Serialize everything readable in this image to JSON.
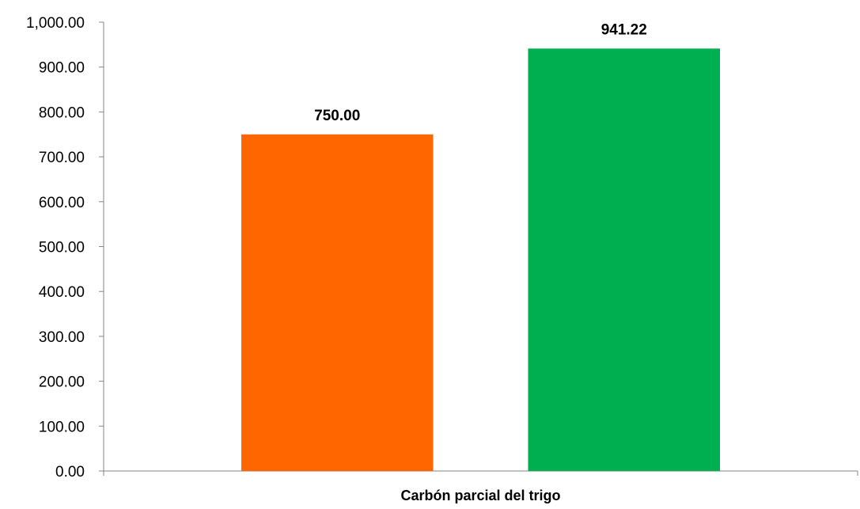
{
  "chart_data": {
    "type": "bar",
    "categories": [
      "Carbón parcial del trigo"
    ],
    "series": [
      {
        "values": [
          750.0
        ],
        "color": "#FF6600"
      },
      {
        "values": [
          941.22
        ],
        "color": "#00B050"
      }
    ],
    "value_labels": [
      "750.00",
      "941.22"
    ],
    "xlabel": "",
    "ylabel": "",
    "ylim": [
      0,
      1000
    ],
    "yticks": [
      0,
      100,
      200,
      300,
      400,
      500,
      600,
      700,
      800,
      900,
      1000
    ],
    "ytick_labels": [
      "0.00",
      "100.00",
      "200.00",
      "300.00",
      "400.00",
      "500.00",
      "600.00",
      "700.00",
      "800.00",
      "900.00",
      "1,000.00"
    ],
    "grid": false,
    "legend": "none"
  }
}
